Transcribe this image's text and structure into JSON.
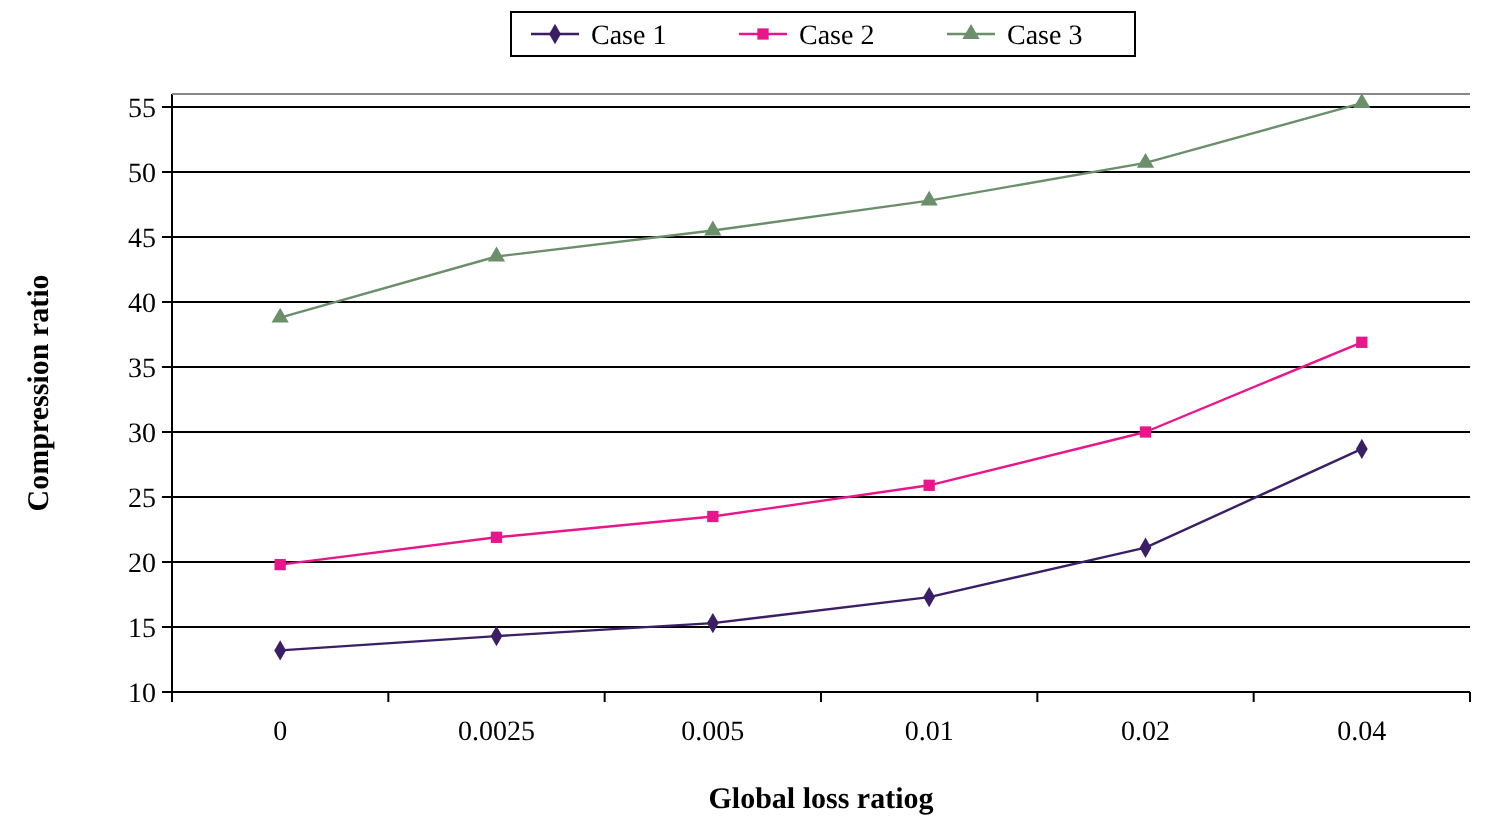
{
  "chart_data": {
    "type": "line",
    "xlabel": "Global loss ratiog",
    "ylabel": "Compression ratio",
    "categories": [
      "0",
      "0.0025",
      "0.005",
      "0.01",
      "0.02",
      "0.04"
    ],
    "series": [
      {
        "name": "Case 1",
        "color": "#3b1f66",
        "marker": "diamond",
        "values": [
          13.2,
          14.3,
          15.3,
          17.3,
          21.1,
          28.7
        ]
      },
      {
        "name": "Case 2",
        "color": "#e8168a",
        "marker": "square",
        "values": [
          19.8,
          21.9,
          23.5,
          25.9,
          30.0,
          36.9
        ]
      },
      {
        "name": "Case 3",
        "color": "#6b8f6b",
        "marker": "triangle",
        "values": [
          38.8,
          43.5,
          45.5,
          47.8,
          50.7,
          55.3
        ]
      }
    ],
    "ylim": [
      10,
      56
    ],
    "yticks": [
      10,
      15,
      20,
      25,
      30,
      35,
      40,
      45,
      50,
      55
    ],
    "grid": "y",
    "legend": "top"
  }
}
